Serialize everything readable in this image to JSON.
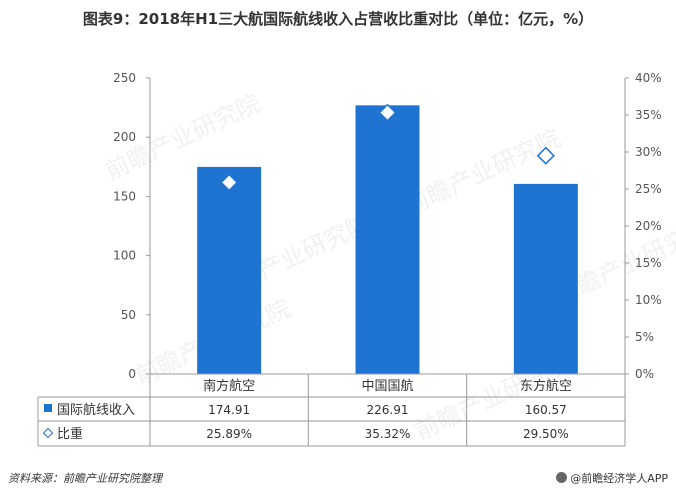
{
  "title": "图表9：2018年H1三大航国际航线收入占营收比重对比（单位：亿元，%）",
  "footer": {
    "source": "资料来源：前瞻产业研究院整理",
    "brand": "@前瞻经济学人APP"
  },
  "watermark": "前瞻产业研究院",
  "colors": {
    "bar": "#1f73d1",
    "marker_fill": "#ffffff",
    "marker_stroke": "#1f73d1",
    "grid": "#999999"
  },
  "chart_data": {
    "type": "bar",
    "categories": [
      "南方航空",
      "中国国航",
      "东方航空"
    ],
    "series": [
      {
        "name": "国际航线收入",
        "type": "bar",
        "axis": "left",
        "values": [
          174.91,
          226.91,
          160.57
        ],
        "labels": [
          "174.91",
          "226.91",
          "160.57"
        ]
      },
      {
        "name": "比重",
        "type": "marker",
        "axis": "right",
        "values": [
          25.89,
          35.32,
          29.5
        ],
        "labels": [
          "25.89%",
          "35.32%",
          "29.50%"
        ]
      }
    ],
    "ylim": [
      0,
      250
    ],
    "y2lim": [
      0,
      40
    ],
    "yticks": [
      "0",
      "50",
      "100",
      "150",
      "200",
      "250"
    ],
    "y2ticks": [
      "0%",
      "5%",
      "10%",
      "15%",
      "20%",
      "25%",
      "30%",
      "35%",
      "40%"
    ],
    "data_table": true,
    "grid": false
  }
}
